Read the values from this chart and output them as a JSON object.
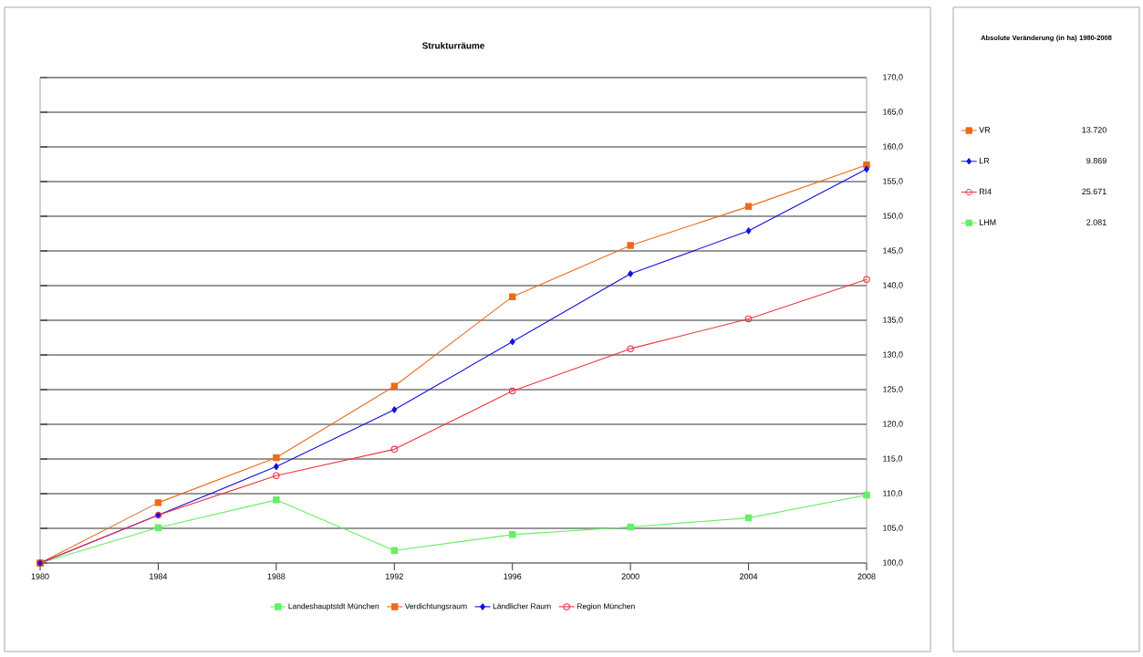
{
  "chart_data": [
    {
      "type": "line",
      "title": "Strukturräume",
      "x": [
        1980,
        1984,
        1988,
        1992,
        1996,
        2000,
        2004,
        2008
      ],
      "xlim": [
        1980,
        2008
      ],
      "xticks": [
        1980,
        1984,
        1988,
        1992,
        1996,
        2000,
        2004,
        2008
      ],
      "ylim": [
        100,
        170
      ],
      "yticks": [
        {
          "value": 100,
          "label": "100,0"
        },
        {
          "value": 105,
          "label": "105,0"
        },
        {
          "value": 110,
          "label": "110,0"
        },
        {
          "value": 115,
          "label": "115,0"
        },
        {
          "value": 120,
          "label": "120,0"
        },
        {
          "value": 125,
          "label": "125,0"
        },
        {
          "value": 130,
          "label": "130,0"
        },
        {
          "value": 135,
          "label": "135,0"
        },
        {
          "value": 140,
          "label": "140,0"
        },
        {
          "value": 145,
          "label": "145,0"
        },
        {
          "value": 150,
          "label": "150,0"
        },
        {
          "value": 155,
          "label": "155,0"
        },
        {
          "value": 160,
          "label": "160,0"
        },
        {
          "value": 165,
          "label": "165,0"
        },
        {
          "value": 170,
          "label": "170,0"
        }
      ],
      "grid": "y",
      "legend": "bottom",
      "series": [
        {
          "name": "Landeshauptstdt München",
          "color": "#66ee66",
          "marker": "square",
          "values": [
            100,
            105.1,
            109.1,
            101.8,
            104.1,
            105.2,
            106.5,
            109.8
          ]
        },
        {
          "name": "Verdichtungsraum",
          "color": "#ee6a1a",
          "marker": "square",
          "values": [
            100,
            108.7,
            115.2,
            125.5,
            138.4,
            145.8,
            151.4,
            157.4
          ]
        },
        {
          "name": "Ländlicher Raum",
          "color": "#1010dd",
          "marker": "diamond",
          "values": [
            100,
            106.9,
            113.9,
            122.1,
            131.9,
            141.7,
            147.9,
            156.8
          ]
        },
        {
          "name": "Region München",
          "color": "#ee3344",
          "marker": "circle",
          "values": [
            100,
            106.9,
            112.6,
            116.4,
            124.8,
            130.9,
            135.2,
            140.9
          ]
        }
      ]
    },
    {
      "type": "other",
      "title": "Absolute Veränderung (in ha) 1980-2008",
      "annotations": [
        "13.720",
        "9.869",
        "25.671",
        "2.081"
      ],
      "series": [
        {
          "name": "VR",
          "color": "#ee6a1a",
          "marker": "square"
        },
        {
          "name": "LR",
          "color": "#1010dd",
          "marker": "diamond"
        },
        {
          "name": "RI4",
          "color": "#ee3344",
          "marker": "circle"
        },
        {
          "name": "LHM",
          "color": "#66ee66",
          "marker": "square"
        }
      ]
    }
  ]
}
